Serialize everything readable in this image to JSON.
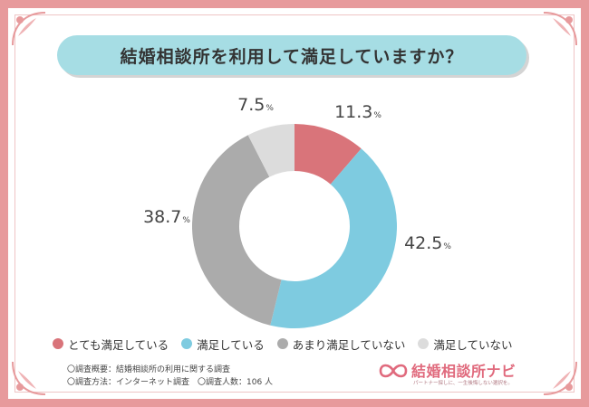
{
  "title": "結婚相談所を利用して満足していますか？",
  "chart_data": {
    "type": "pie",
    "style": "donut",
    "start_angle_deg": 0,
    "direction": "clockwise",
    "slices": [
      {
        "label": "とても満足している",
        "value": 11.3,
        "display": "11.3",
        "unit": "%",
        "color": "#d9747a"
      },
      {
        "label": "満足している",
        "value": 42.5,
        "display": "42.5",
        "unit": "%",
        "color": "#7ecbe0"
      },
      {
        "label": "あまり満足していない",
        "value": 38.7,
        "display": "38.7",
        "unit": "%",
        "color": "#ababab"
      },
      {
        "label": "満足していない",
        "value": 7.5,
        "display": "7.5",
        "unit": "%",
        "color": "#dcdcdc"
      }
    ],
    "legend_position": "bottom"
  },
  "notes": [
    "〇調査概要：結婚相談所の利用に関する調査",
    "〇調査方法：インターネット調査　〇調査人数：106 人"
  ],
  "brand": {
    "name": "結婚相談所ナビ",
    "tagline": "パートナー探しに、一生後悔しない選択を。",
    "color": "#e06a7d"
  },
  "theme": {
    "frame_color": "#e79a9c",
    "title_bg": "#a6dde4"
  },
  "icons": [
    "corner-ornament-icon",
    "infinity-heart-logo-icon"
  ]
}
